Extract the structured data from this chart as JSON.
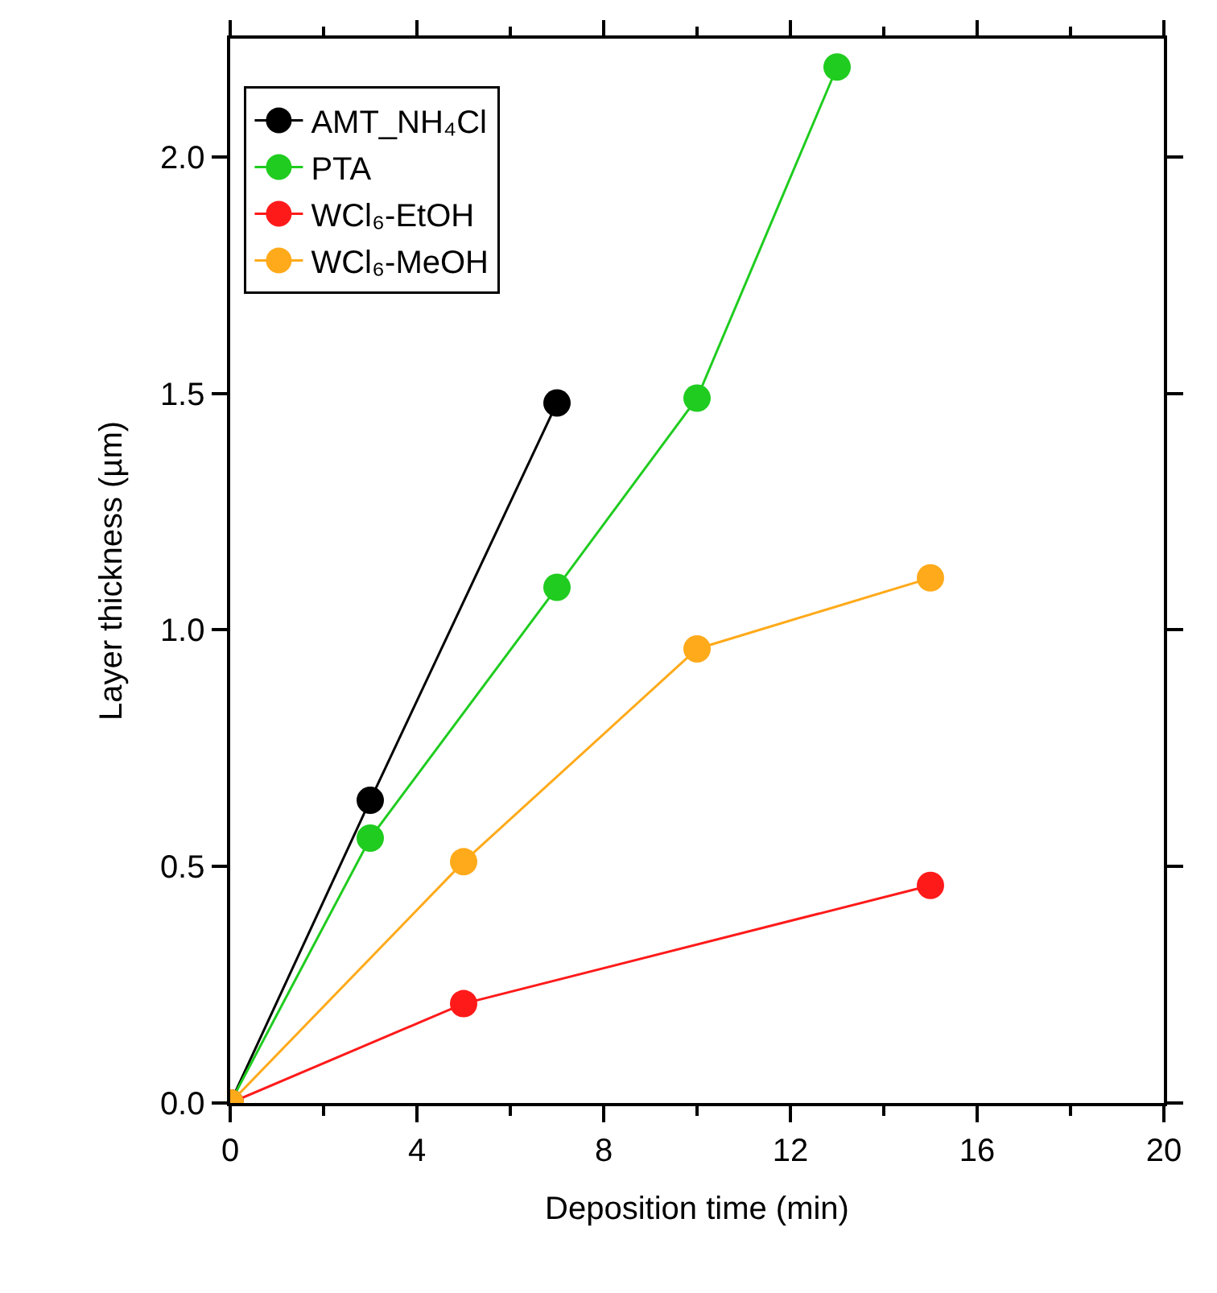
{
  "chart_data": {
    "type": "line",
    "xlabel": "Deposition time (min)",
    "ylabel": "Layer thickness (µm)",
    "xlim": [
      0,
      20
    ],
    "ylim": [
      0,
      2.25
    ],
    "xticks": [
      0,
      {
        "value": 2,
        "label": null
      },
      4,
      {
        "value": 6,
        "label": null
      },
      8,
      {
        "value": 10,
        "label": null
      },
      12,
      {
        "value": 14,
        "label": null
      },
      16,
      {
        "value": 18,
        "label": null
      },
      20
    ],
    "yticks": [
      {
        "value": 0,
        "label": "0.0"
      },
      {
        "value": 0.5,
        "label": "0.5"
      },
      {
        "value": 1,
        "label": "1.0"
      },
      {
        "value": 1.5,
        "label": "1.5"
      },
      {
        "value": 2,
        "label": "2.0"
      }
    ],
    "grid": false,
    "legend": "top left",
    "marker": "circle",
    "line_style": "solid",
    "series": [
      {
        "name": "AMT_NH₄Cl",
        "color": "#000000",
        "x": [
          0,
          3,
          7
        ],
        "values": [
          0,
          0.64,
          1.48
        ]
      },
      {
        "name": "PTA",
        "color": "#1fcc1f",
        "x": [
          0,
          3,
          7,
          10,
          13
        ],
        "values": [
          0,
          0.56,
          1.09,
          1.49,
          2.19
        ]
      },
      {
        "name": "WCl₆-EtOH",
        "color": "#ff1a1a",
        "x": [
          0,
          5,
          15
        ],
        "values": [
          0,
          0.21,
          0.46
        ]
      },
      {
        "name": "WCl₆-MeOH",
        "color": "#ffaa1a",
        "x": [
          0,
          5,
          10,
          15
        ],
        "values": [
          0,
          0.51,
          0.96,
          1.11
        ]
      }
    ]
  }
}
